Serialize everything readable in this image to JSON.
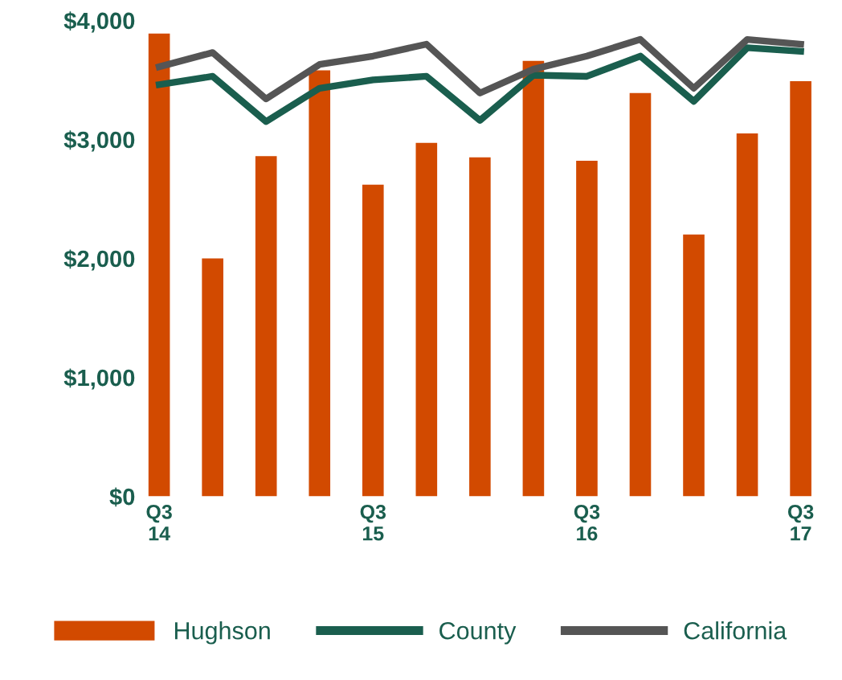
{
  "chart_data": {
    "type": "bar",
    "categories": [
      "Q3\n14",
      null,
      null,
      null,
      "Q3\n15",
      null,
      null,
      null,
      "Q3\n16",
      null,
      null,
      null,
      "Q3\n17"
    ],
    "series": [
      {
        "name": "Hughson",
        "color": "#d24a00",
        "values": [
          3890,
          2000,
          2860,
          3580,
          2620,
          2970,
          2850,
          3660,
          2820,
          3390,
          2200,
          3050,
          3490
        ]
      },
      {
        "name": "County",
        "type": "line",
        "color": "#1a5e4e",
        "values": [
          3460,
          3530,
          3150,
          3430,
          3500,
          3530,
          3160,
          3540,
          3530,
          3700,
          3320,
          3770,
          3740
        ]
      },
      {
        "name": "California",
        "type": "line",
        "color": "#555555",
        "values": [
          3610,
          3730,
          3340,
          3630,
          3700,
          3800,
          3390,
          3590,
          3700,
          3840,
          3430,
          3840,
          3800
        ]
      }
    ],
    "ylim": [
      0,
      4000
    ],
    "yticks": [
      {
        "value": 0,
        "label": "$0"
      },
      {
        "value": 1000,
        "label": "$1,000"
      },
      {
        "value": 2000,
        "label": "$2,000"
      },
      {
        "value": 3000,
        "label": "$3,000"
      },
      {
        "value": 4000,
        "label": "$4,000"
      }
    ],
    "grid": false,
    "legend": "bottom"
  }
}
